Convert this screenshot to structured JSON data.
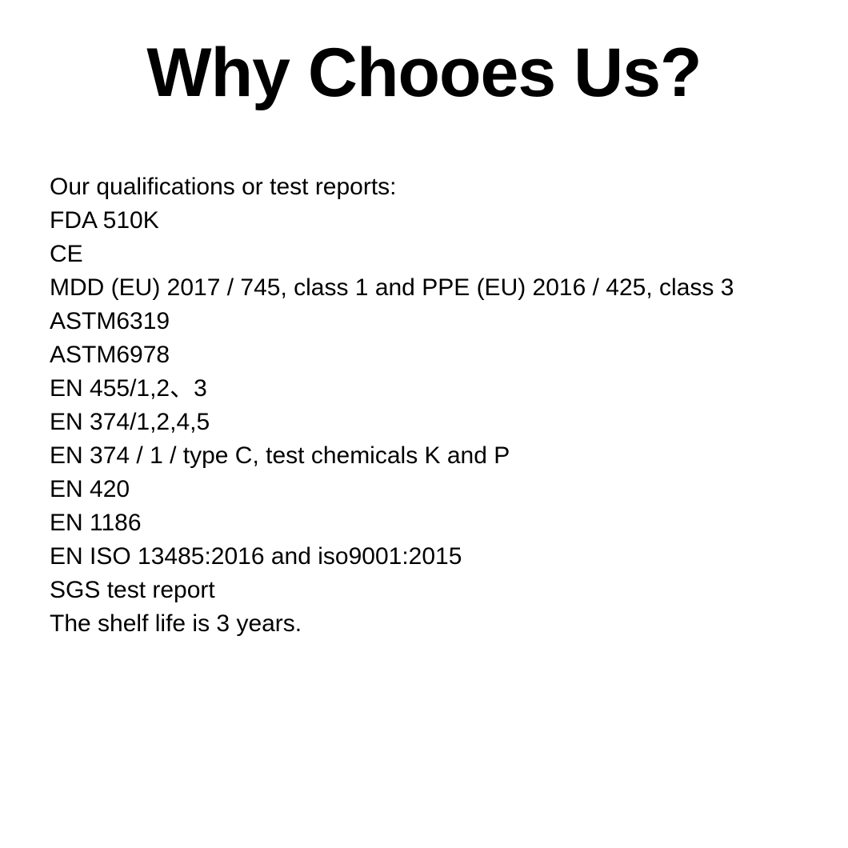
{
  "page": {
    "title": "Why Chooes Us?",
    "body_lines": [
      "Our qualifications or test reports:",
      "FDA 510K",
      "CE",
      "MDD (EU) 2017 / 745, class 1 and PPE (EU) 2016 / 425, class 3",
      "ASTM6319",
      "ASTM6978",
      "EN 455/1,2、3",
      "EN 374/1,2,4,5",
      "EN 374 / 1 / type C, test chemicals K and P",
      "EN 420",
      "EN 1186",
      "EN ISO 13485:2016 and iso9001:2015",
      "SGS test report",
      "The shelf life is 3 years."
    ]
  },
  "colors": {
    "background": "#ffffff",
    "text": "#000000"
  }
}
